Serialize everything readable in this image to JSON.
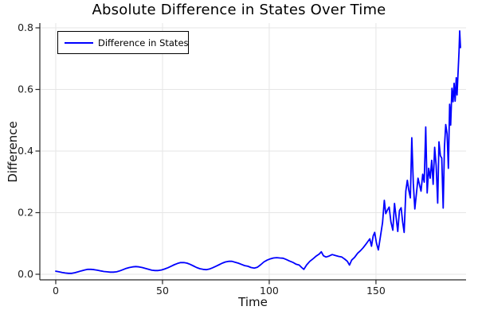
{
  "colors": {
    "line": "#0000ff",
    "grid": "#e6e6e6",
    "spine": "#262626",
    "tick_text": "#1c1c1c",
    "background": "#ffffff"
  },
  "legend": {
    "label": "Difference in States"
  },
  "chart_data": {
    "type": "line",
    "title": "Absolute Difference in States Over Time",
    "xlabel": "Time",
    "ylabel": "Difference",
    "legend_position": "top-left",
    "grid": true,
    "xlim": [
      -7.46,
      192.2
    ],
    "ylim": [
      -0.0181,
      0.8155
    ],
    "xticks": {
      "values": [
        0,
        50,
        100,
        150
      ],
      "labels": [
        "0",
        "50",
        "100",
        "150"
      ]
    },
    "yticks": {
      "values": [
        0.0,
        0.2,
        0.4,
        0.6,
        0.8
      ],
      "labels": [
        "0.0",
        "0.2",
        "0.4",
        "0.6",
        "0.8"
      ]
    },
    "series": [
      {
        "name": "Difference in States",
        "color": "#0000ff",
        "x": [
          0,
          1.5,
          3,
          4.5,
          6,
          7.5,
          9,
          10.5,
          12,
          13.5,
          15,
          16.5,
          18,
          19.5,
          21,
          22.5,
          24,
          25.5,
          27,
          28.5,
          30,
          31.5,
          33,
          34.5,
          36,
          37.5,
          39,
          40.5,
          42,
          43.5,
          45,
          46.5,
          48,
          49.5,
          51,
          52.5,
          54,
          55.5,
          57,
          58.5,
          60,
          61.5,
          63,
          64.5,
          66,
          67.5,
          69,
          70.5,
          72,
          73.5,
          75,
          76.5,
          78,
          79.5,
          81,
          82.5,
          84,
          85.5,
          87,
          88.5,
          90,
          91.5,
          93,
          94.5,
          96,
          97.5,
          99,
          100.5,
          102,
          103.5,
          105,
          106.5,
          108,
          109.5,
          111,
          112.5,
          114,
          115.2,
          116.2,
          117.5,
          119,
          120.5,
          122,
          123.5,
          124.4,
          125.4,
          126.6,
          128,
          129.5,
          131,
          132.5,
          134,
          135.4,
          136.6,
          137.6,
          138.6,
          140,
          141.4,
          142.8,
          144,
          145.2,
          146.2,
          147.1,
          147.9,
          148.7,
          149.4,
          150.2,
          151.1,
          152.1,
          153.1,
          153.9,
          154.6,
          155.4,
          156.2,
          157,
          157.9,
          158.7,
          159.4,
          160.2,
          161,
          161.8,
          162.5,
          163.2,
          164,
          164.7,
          165.4,
          166.1,
          166.8,
          167.5,
          168.2,
          169,
          169.7,
          170.4,
          171.1,
          171.9,
          172.6,
          173.3,
          174,
          174.7,
          175.4,
          176.1,
          176.8,
          177.5,
          178.2,
          178.9,
          179.5,
          180.2,
          180.8,
          181.5,
          182.1,
          182.7,
          183.3,
          183.9,
          184.5,
          185,
          185.6,
          186.1,
          186.6,
          187.1,
          187.6,
          188,
          188.5,
          188.9,
          189.2,
          189.6
        ],
        "y": [
          0.01,
          0.008,
          0.006,
          0.004,
          0.003,
          0.003,
          0.005,
          0.008,
          0.011,
          0.014,
          0.016,
          0.016,
          0.015,
          0.013,
          0.011,
          0.009,
          0.008,
          0.007,
          0.007,
          0.008,
          0.011,
          0.015,
          0.019,
          0.022,
          0.024,
          0.025,
          0.024,
          0.022,
          0.019,
          0.016,
          0.013,
          0.012,
          0.012,
          0.014,
          0.017,
          0.021,
          0.026,
          0.031,
          0.035,
          0.038,
          0.038,
          0.036,
          0.032,
          0.027,
          0.022,
          0.018,
          0.016,
          0.015,
          0.017,
          0.021,
          0.026,
          0.031,
          0.036,
          0.04,
          0.042,
          0.042,
          0.039,
          0.036,
          0.032,
          0.028,
          0.026,
          0.022,
          0.02,
          0.023,
          0.031,
          0.04,
          0.046,
          0.05,
          0.053,
          0.054,
          0.053,
          0.052,
          0.048,
          0.043,
          0.039,
          0.033,
          0.03,
          0.022,
          0.016,
          0.03,
          0.042,
          0.05,
          0.059,
          0.066,
          0.073,
          0.06,
          0.056,
          0.059,
          0.064,
          0.061,
          0.058,
          0.056,
          0.049,
          0.042,
          0.03,
          0.046,
          0.055,
          0.068,
          0.077,
          0.086,
          0.097,
          0.106,
          0.115,
          0.091,
          0.124,
          0.136,
          0.102,
          0.079,
          0.122,
          0.168,
          0.24,
          0.197,
          0.209,
          0.218,
          0.17,
          0.143,
          0.23,
          0.187,
          0.139,
          0.207,
          0.216,
          0.17,
          0.136,
          0.27,
          0.305,
          0.272,
          0.248,
          0.443,
          0.295,
          0.212,
          0.264,
          0.312,
          0.29,
          0.27,
          0.325,
          0.299,
          0.478,
          0.264,
          0.344,
          0.312,
          0.37,
          0.292,
          0.412,
          0.352,
          0.231,
          0.43,
          0.385,
          0.377,
          0.215,
          0.414,
          0.486,
          0.456,
          0.344,
          0.552,
          0.484,
          0.604,
          0.56,
          0.62,
          0.562,
          0.638,
          0.582,
          0.662,
          0.724,
          0.79,
          0.736
        ]
      }
    ]
  }
}
